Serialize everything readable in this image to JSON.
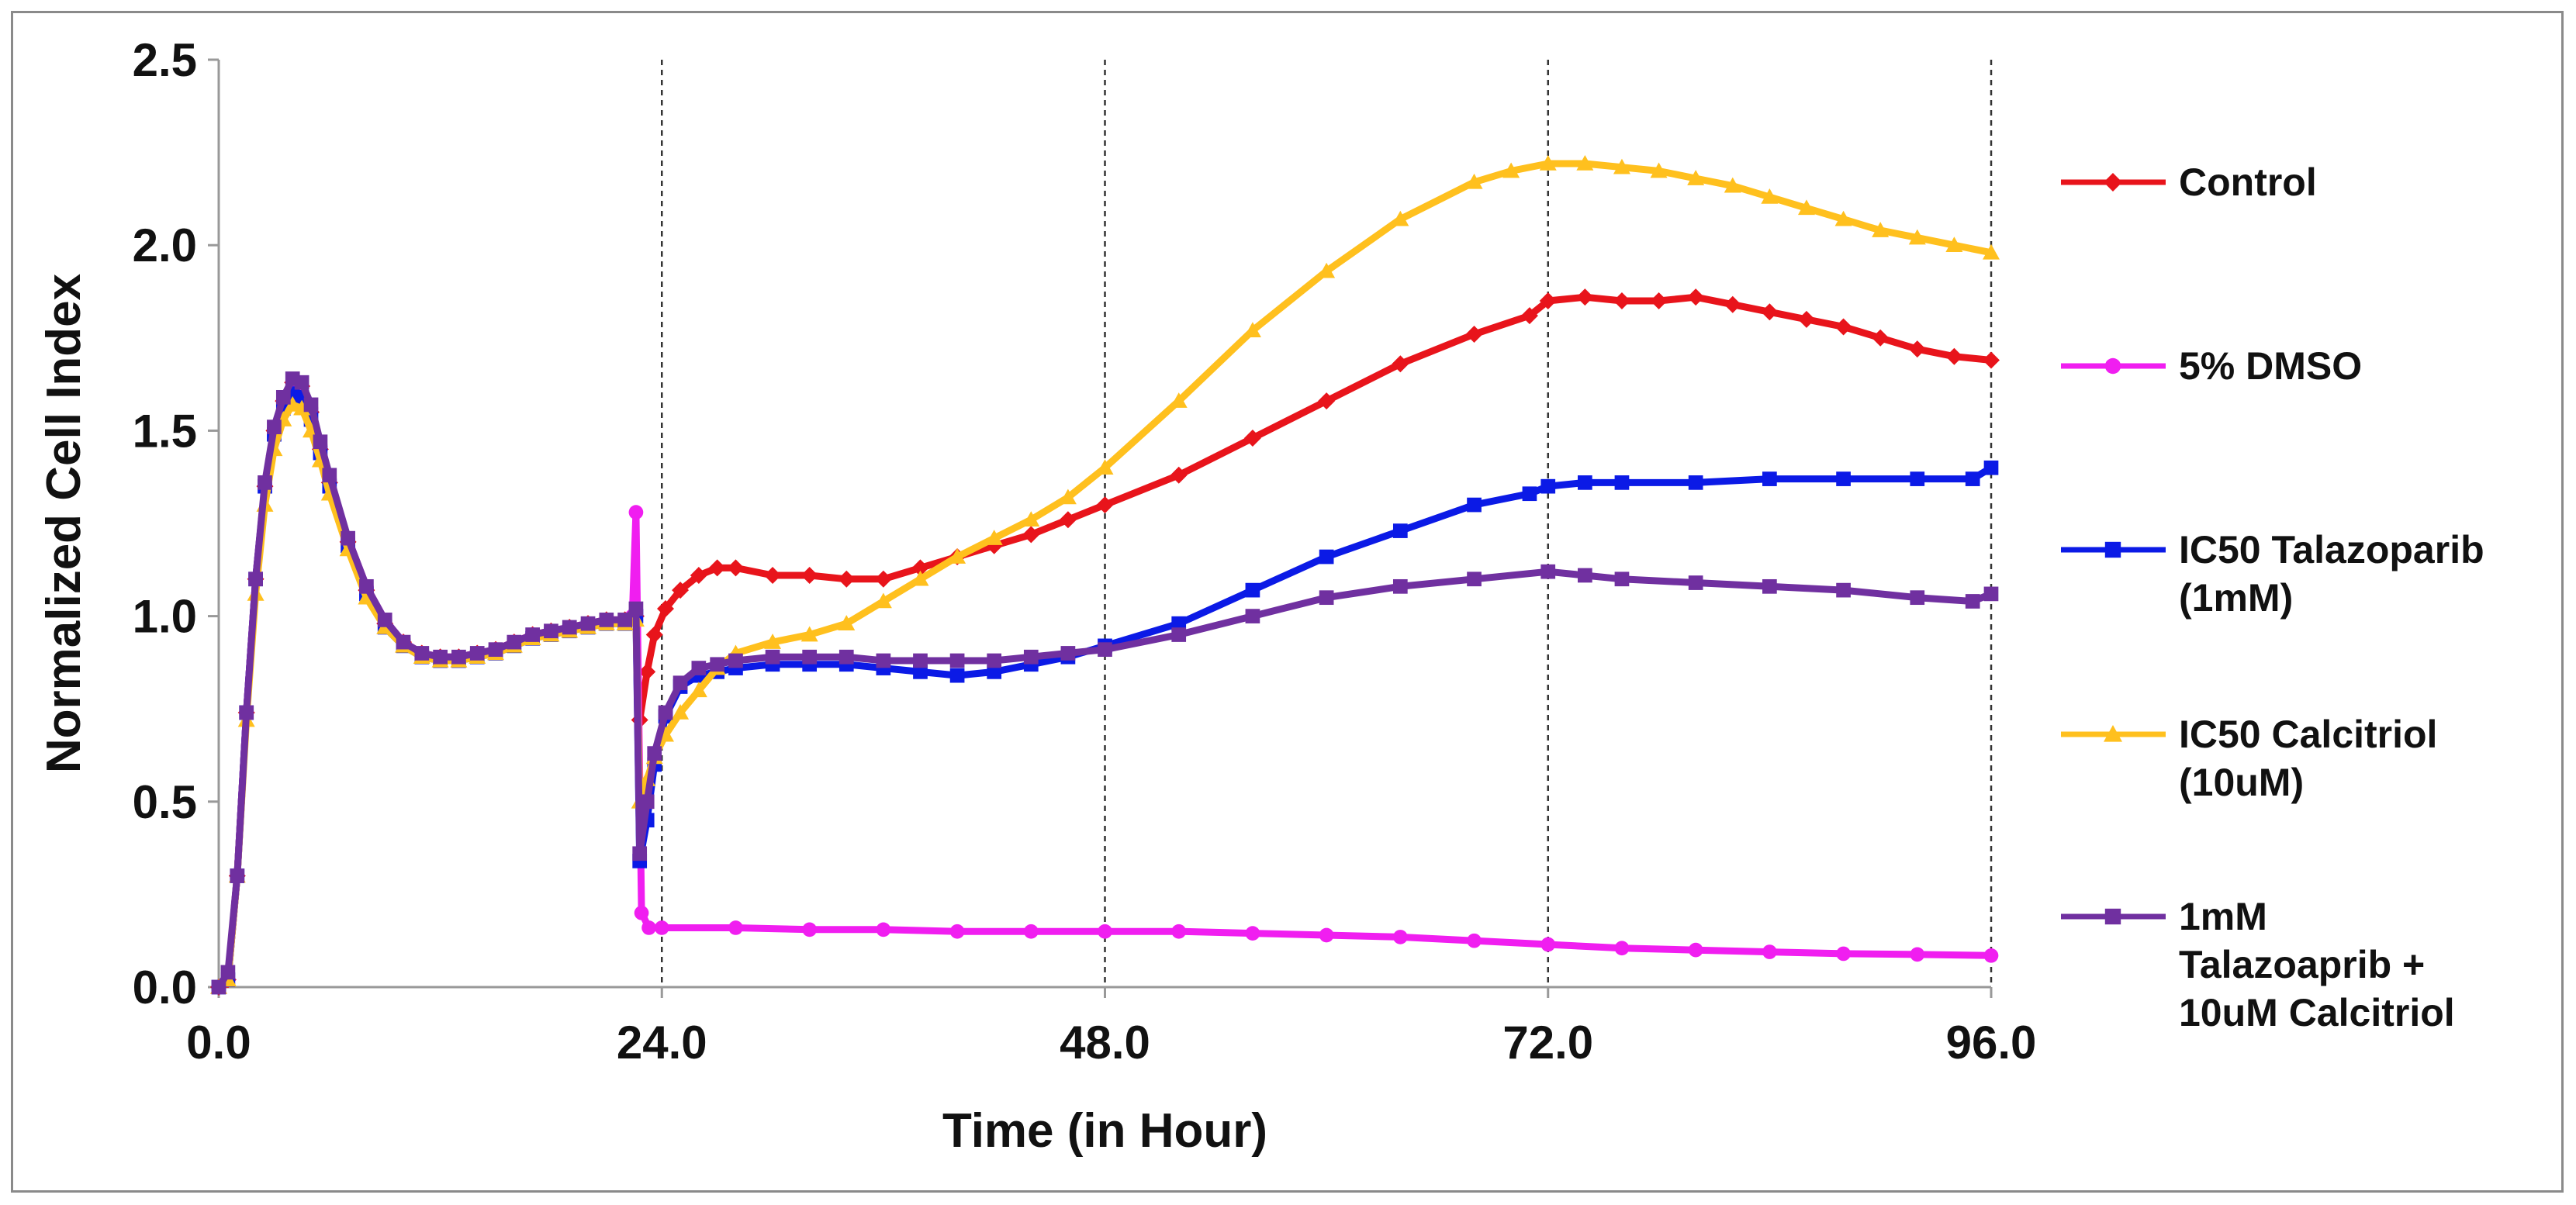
{
  "chart_data": {
    "type": "line",
    "title": "",
    "xlabel": "Time (in Hour)",
    "ylabel": "Normalized Cell Index",
    "xlim": [
      0,
      96
    ],
    "ylim": [
      0,
      2.5
    ],
    "x_ticks": [
      0,
      24,
      48,
      72,
      96
    ],
    "x_tick_labels": [
      "0.0",
      "24.0",
      "48.0",
      "72.0",
      "96.0"
    ],
    "y_ticks": [
      0,
      0.5,
      1.0,
      1.5,
      2.0,
      2.5
    ],
    "y_tick_labels": [
      "0.0",
      "0.5",
      "1.0",
      "1.5",
      "2.0",
      "2.5"
    ],
    "reference_lines_x": [
      24,
      48,
      72,
      96
    ],
    "grid": false,
    "legend_position": "right",
    "series": [
      {
        "name": "Control",
        "legend_lines": [
          "Control"
        ],
        "color": "#e8141b",
        "marker": "diamond",
        "points": [
          [
            0,
            0
          ],
          [
            0.5,
            0.02
          ],
          [
            1,
            0.3
          ],
          [
            1.5,
            0.74
          ],
          [
            2,
            1.1
          ],
          [
            2.5,
            1.35
          ],
          [
            3,
            1.5
          ],
          [
            3.5,
            1.58
          ],
          [
            4,
            1.63
          ],
          [
            4.5,
            1.62
          ],
          [
            5,
            1.55
          ],
          [
            5.5,
            1.45
          ],
          [
            6,
            1.36
          ],
          [
            7,
            1.2
          ],
          [
            8,
            1.07
          ],
          [
            9,
            0.98
          ],
          [
            10,
            0.93
          ],
          [
            11,
            0.9
          ],
          [
            12,
            0.89
          ],
          [
            13,
            0.89
          ],
          [
            14,
            0.9
          ],
          [
            15,
            0.91
          ],
          [
            16,
            0.93
          ],
          [
            17,
            0.95
          ],
          [
            18,
            0.96
          ],
          [
            19,
            0.97
          ],
          [
            20,
            0.98
          ],
          [
            21,
            0.99
          ],
          [
            22,
            0.99
          ],
          [
            22.6,
            1.0
          ],
          [
            22.8,
            0.72
          ],
          [
            23.2,
            0.85
          ],
          [
            23.6,
            0.95
          ],
          [
            24.2,
            1.02
          ],
          [
            25,
            1.07
          ],
          [
            26,
            1.11
          ],
          [
            27,
            1.13
          ],
          [
            28,
            1.13
          ],
          [
            30,
            1.11
          ],
          [
            32,
            1.11
          ],
          [
            34,
            1.1
          ],
          [
            36,
            1.1
          ],
          [
            38,
            1.13
          ],
          [
            40,
            1.16
          ],
          [
            42,
            1.19
          ],
          [
            44,
            1.22
          ],
          [
            46,
            1.26
          ],
          [
            48,
            1.3
          ],
          [
            52,
            1.38
          ],
          [
            56,
            1.48
          ],
          [
            60,
            1.58
          ],
          [
            64,
            1.68
          ],
          [
            68,
            1.76
          ],
          [
            71,
            1.81
          ],
          [
            72,
            1.85
          ],
          [
            74,
            1.86
          ],
          [
            76,
            1.85
          ],
          [
            78,
            1.85
          ],
          [
            80,
            1.86
          ],
          [
            82,
            1.84
          ],
          [
            84,
            1.82
          ],
          [
            86,
            1.8
          ],
          [
            88,
            1.78
          ],
          [
            90,
            1.75
          ],
          [
            92,
            1.72
          ],
          [
            94,
            1.7
          ],
          [
            96,
            1.69
          ]
        ]
      },
      {
        "name": "5% DMSO",
        "legend_lines": [
          "5% DMSO"
        ],
        "color": "#f01ef0",
        "marker": "circle",
        "points": [
          [
            0,
            0
          ],
          [
            0.5,
            0.02
          ],
          [
            1,
            0.3
          ],
          [
            1.5,
            0.74
          ],
          [
            2,
            1.1
          ],
          [
            2.5,
            1.35
          ],
          [
            3,
            1.5
          ],
          [
            3.5,
            1.58
          ],
          [
            4,
            1.63
          ],
          [
            4.5,
            1.62
          ],
          [
            5,
            1.56
          ],
          [
            5.5,
            1.46
          ],
          [
            6,
            1.37
          ],
          [
            7,
            1.21
          ],
          [
            8,
            1.08
          ],
          [
            9,
            0.99
          ],
          [
            10,
            0.93
          ],
          [
            11,
            0.9
          ],
          [
            12,
            0.89
          ],
          [
            13,
            0.89
          ],
          [
            14,
            0.9
          ],
          [
            15,
            0.91
          ],
          [
            16,
            0.93
          ],
          [
            17,
            0.95
          ],
          [
            18,
            0.96
          ],
          [
            19,
            0.97
          ],
          [
            20,
            0.98
          ],
          [
            21,
            0.99
          ],
          [
            22,
            0.99
          ],
          [
            22.4,
            1.0
          ],
          [
            22.6,
            1.28
          ],
          [
            22.9,
            0.2
          ],
          [
            23.3,
            0.16
          ],
          [
            24,
            0.16
          ],
          [
            28,
            0.16
          ],
          [
            32,
            0.155
          ],
          [
            36,
            0.155
          ],
          [
            40,
            0.15
          ],
          [
            44,
            0.15
          ],
          [
            48,
            0.15
          ],
          [
            52,
            0.15
          ],
          [
            56,
            0.145
          ],
          [
            60,
            0.14
          ],
          [
            64,
            0.135
          ],
          [
            68,
            0.125
          ],
          [
            72,
            0.115
          ],
          [
            76,
            0.105
          ],
          [
            80,
            0.1
          ],
          [
            84,
            0.095
          ],
          [
            88,
            0.09
          ],
          [
            92,
            0.088
          ],
          [
            96,
            0.085
          ]
        ]
      },
      {
        "name": "IC50 Talazoparib (1mM)",
        "legend_lines": [
          "IC50 Talazoparib",
          "(1mM)"
        ],
        "color": "#0b1ae6",
        "marker": "square",
        "points": [
          [
            0,
            0
          ],
          [
            0.5,
            0.02
          ],
          [
            1,
            0.3
          ],
          [
            1.5,
            0.74
          ],
          [
            2,
            1.1
          ],
          [
            2.5,
            1.35
          ],
          [
            3,
            1.49
          ],
          [
            3.5,
            1.56
          ],
          [
            4,
            1.6
          ],
          [
            4.5,
            1.59
          ],
          [
            5,
            1.53
          ],
          [
            5.5,
            1.44
          ],
          [
            6,
            1.35
          ],
          [
            7,
            1.19
          ],
          [
            8,
            1.06
          ],
          [
            9,
            0.97
          ],
          [
            10,
            0.92
          ],
          [
            11,
            0.89
          ],
          [
            12,
            0.88
          ],
          [
            13,
            0.88
          ],
          [
            14,
            0.89
          ],
          [
            15,
            0.9
          ],
          [
            16,
            0.92
          ],
          [
            17,
            0.94
          ],
          [
            18,
            0.95
          ],
          [
            19,
            0.96
          ],
          [
            20,
            0.97
          ],
          [
            21,
            0.98
          ],
          [
            22,
            0.98
          ],
          [
            22.6,
            1.0
          ],
          [
            22.8,
            0.34
          ],
          [
            23.2,
            0.45
          ],
          [
            23.6,
            0.6
          ],
          [
            24.2,
            0.73
          ],
          [
            25,
            0.81
          ],
          [
            26,
            0.84
          ],
          [
            27,
            0.85
          ],
          [
            28,
            0.86
          ],
          [
            30,
            0.87
          ],
          [
            32,
            0.87
          ],
          [
            34,
            0.87
          ],
          [
            36,
            0.86
          ],
          [
            38,
            0.85
          ],
          [
            40,
            0.84
          ],
          [
            42,
            0.85
          ],
          [
            44,
            0.87
          ],
          [
            46,
            0.89
          ],
          [
            48,
            0.92
          ],
          [
            52,
            0.98
          ],
          [
            56,
            1.07
          ],
          [
            60,
            1.16
          ],
          [
            64,
            1.23
          ],
          [
            68,
            1.3
          ],
          [
            71,
            1.33
          ],
          [
            72,
            1.35
          ],
          [
            74,
            1.36
          ],
          [
            76,
            1.36
          ],
          [
            80,
            1.36
          ],
          [
            84,
            1.37
          ],
          [
            88,
            1.37
          ],
          [
            92,
            1.37
          ],
          [
            95,
            1.37
          ],
          [
            96,
            1.4
          ]
        ]
      },
      {
        "name": "IC50 Calcitriol (10uM)",
        "legend_lines": [
          "IC50 Calcitriol",
          "(10uM)"
        ],
        "color": "#ffc01e",
        "marker": "triangle",
        "points": [
          [
            0,
            0
          ],
          [
            0.5,
            0.02
          ],
          [
            1,
            0.3
          ],
          [
            1.5,
            0.72
          ],
          [
            2,
            1.06
          ],
          [
            2.5,
            1.3
          ],
          [
            3,
            1.45
          ],
          [
            3.5,
            1.53
          ],
          [
            4,
            1.57
          ],
          [
            4.5,
            1.56
          ],
          [
            5,
            1.5
          ],
          [
            5.5,
            1.42
          ],
          [
            6,
            1.33
          ],
          [
            7,
            1.18
          ],
          [
            8,
            1.05
          ],
          [
            9,
            0.97
          ],
          [
            10,
            0.92
          ],
          [
            11,
            0.89
          ],
          [
            12,
            0.88
          ],
          [
            13,
            0.88
          ],
          [
            14,
            0.89
          ],
          [
            15,
            0.9
          ],
          [
            16,
            0.92
          ],
          [
            17,
            0.94
          ],
          [
            18,
            0.95
          ],
          [
            19,
            0.96
          ],
          [
            20,
            0.97
          ],
          [
            21,
            0.98
          ],
          [
            22,
            0.98
          ],
          [
            22.6,
            0.99
          ],
          [
            22.8,
            0.5
          ],
          [
            23.2,
            0.56
          ],
          [
            23.6,
            0.62
          ],
          [
            24.2,
            0.68
          ],
          [
            25,
            0.74
          ],
          [
            26,
            0.8
          ],
          [
            27,
            0.86
          ],
          [
            28,
            0.9
          ],
          [
            30,
            0.93
          ],
          [
            32,
            0.95
          ],
          [
            34,
            0.98
          ],
          [
            36,
            1.04
          ],
          [
            38,
            1.1
          ],
          [
            40,
            1.16
          ],
          [
            42,
            1.21
          ],
          [
            44,
            1.26
          ],
          [
            46,
            1.32
          ],
          [
            48,
            1.4
          ],
          [
            52,
            1.58
          ],
          [
            56,
            1.77
          ],
          [
            60,
            1.93
          ],
          [
            64,
            2.07
          ],
          [
            68,
            2.17
          ],
          [
            70,
            2.2
          ],
          [
            72,
            2.22
          ],
          [
            74,
            2.22
          ],
          [
            76,
            2.21
          ],
          [
            78,
            2.2
          ],
          [
            80,
            2.18
          ],
          [
            82,
            2.16
          ],
          [
            84,
            2.13
          ],
          [
            86,
            2.1
          ],
          [
            88,
            2.07
          ],
          [
            90,
            2.04
          ],
          [
            92,
            2.02
          ],
          [
            94,
            2.0
          ],
          [
            96,
            1.98
          ]
        ]
      },
      {
        "name": "1mM Talazoaprib + 10uM Calcitriol",
        "legend_lines": [
          "1mM",
          "Talazoaprib +",
          "10uM Calcitriol"
        ],
        "color": "#7030a0",
        "marker": "square",
        "points": [
          [
            0,
            0
          ],
          [
            0.5,
            0.04
          ],
          [
            1,
            0.3
          ],
          [
            1.5,
            0.74
          ],
          [
            2,
            1.1
          ],
          [
            2.5,
            1.36
          ],
          [
            3,
            1.51
          ],
          [
            3.5,
            1.59
          ],
          [
            4,
            1.64
          ],
          [
            4.5,
            1.63
          ],
          [
            5,
            1.57
          ],
          [
            5.5,
            1.47
          ],
          [
            6,
            1.38
          ],
          [
            7,
            1.21
          ],
          [
            8,
            1.08
          ],
          [
            9,
            0.99
          ],
          [
            10,
            0.93
          ],
          [
            11,
            0.9
          ],
          [
            12,
            0.89
          ],
          [
            13,
            0.89
          ],
          [
            14,
            0.9
          ],
          [
            15,
            0.91
          ],
          [
            16,
            0.93
          ],
          [
            17,
            0.95
          ],
          [
            18,
            0.96
          ],
          [
            19,
            0.97
          ],
          [
            20,
            0.98
          ],
          [
            21,
            0.99
          ],
          [
            22,
            0.99
          ],
          [
            22.6,
            1.02
          ],
          [
            22.8,
            0.36
          ],
          [
            23.2,
            0.5
          ],
          [
            23.6,
            0.63
          ],
          [
            24.2,
            0.74
          ],
          [
            25,
            0.82
          ],
          [
            26,
            0.86
          ],
          [
            27,
            0.87
          ],
          [
            28,
            0.88
          ],
          [
            30,
            0.89
          ],
          [
            32,
            0.89
          ],
          [
            34,
            0.89
          ],
          [
            36,
            0.88
          ],
          [
            38,
            0.88
          ],
          [
            40,
            0.88
          ],
          [
            42,
            0.88
          ],
          [
            44,
            0.89
          ],
          [
            46,
            0.9
          ],
          [
            48,
            0.91
          ],
          [
            52,
            0.95
          ],
          [
            56,
            1.0
          ],
          [
            60,
            1.05
          ],
          [
            64,
            1.08
          ],
          [
            68,
            1.1
          ],
          [
            72,
            1.12
          ],
          [
            74,
            1.11
          ],
          [
            76,
            1.1
          ],
          [
            80,
            1.09
          ],
          [
            84,
            1.08
          ],
          [
            88,
            1.07
          ],
          [
            92,
            1.05
          ],
          [
            95,
            1.04
          ],
          [
            96,
            1.06
          ]
        ]
      }
    ]
  }
}
